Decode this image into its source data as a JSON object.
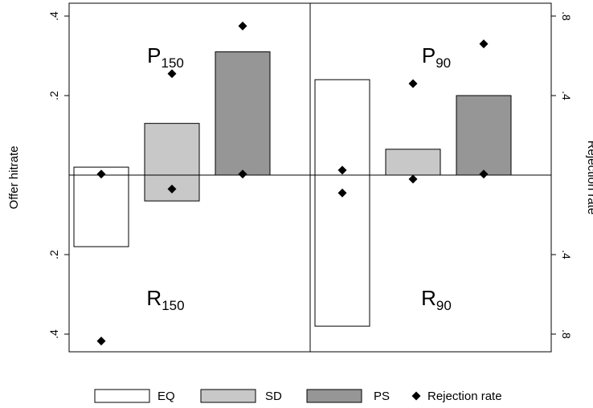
{
  "chart_data": {
    "type": "bar",
    "ylabel_left": "Offer hitrate",
    "ylabel_right": "Rejection rate",
    "left_axis": {
      "range": [
        -0.4,
        0.4
      ],
      "ticks": [
        {
          "value": 0.4,
          "label": ".4"
        },
        {
          "value": 0.2,
          "label": ".2"
        },
        {
          "value": -0.2,
          "label": ".2"
        },
        {
          "value": -0.4,
          "label": ".4"
        }
      ]
    },
    "right_axis": {
      "range": [
        -0.8,
        0.8
      ],
      "ticks": [
        {
          "value": 0.8,
          "label": ".8"
        },
        {
          "value": 0.4,
          "label": ".4"
        },
        {
          "value": -0.4,
          "label": ".4"
        },
        {
          "value": -0.8,
          "label": ".8"
        }
      ]
    },
    "legend": {
      "placement": "bottom",
      "items": [
        {
          "label": "EQ",
          "color": "#ffffff"
        },
        {
          "label": "SD",
          "color": "#c8c8c8"
        },
        {
          "label": "PS",
          "color": "#969696"
        },
        {
          "label": "Rejection rate",
          "marker": "diamond"
        }
      ]
    },
    "series_colors": {
      "EQ": "#ffffff",
      "SD": "#c8c8c8",
      "PS": "#969696"
    },
    "panels": [
      {
        "top_label": {
          "main": "P",
          "sub": "150"
        },
        "bottom_label": {
          "main": "R",
          "sub": "150"
        },
        "bars": [
          {
            "series": "EQ",
            "start": 0.02,
            "end": -0.18
          },
          {
            "series": "SD",
            "start": 0.13,
            "end": -0.065
          },
          {
            "series": "PS",
            "start": 0.31,
            "end": 0.0
          }
        ],
        "rejection_rate": [
          [
            0.005,
            -0.835
          ],
          [
            0.51,
            -0.07
          ],
          [
            0.75,
            0.005
          ]
        ]
      },
      {
        "top_label": {
          "main": "P",
          "sub": "90"
        },
        "bottom_label": {
          "main": "R",
          "sub": "90"
        },
        "bars": [
          {
            "series": "EQ",
            "start": 0.24,
            "end": -0.38
          },
          {
            "series": "SD",
            "start": 0.065,
            "end": 0.0
          },
          {
            "series": "PS",
            "start": 0.2,
            "end": 0.0
          }
        ],
        "rejection_rate": [
          [
            0.025,
            -0.09
          ],
          [
            0.46,
            -0.02
          ],
          [
            0.66,
            0.005
          ]
        ]
      }
    ]
  }
}
